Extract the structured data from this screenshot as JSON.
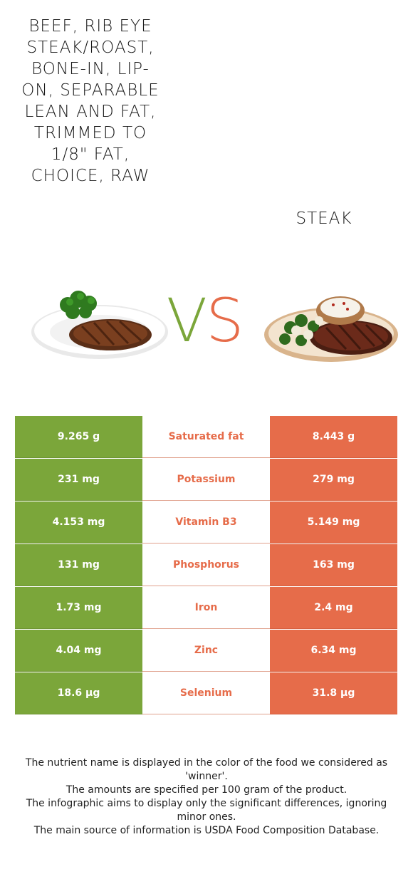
{
  "food_left": {
    "name": "Beef, rib eye steak/roast, bone-in, lip-on, separable lean and fat, trimmed to 1/8\" fat, choice, raw",
    "color": "#7ba63a"
  },
  "food_right": {
    "name": "Steak",
    "color": "#e66c4a"
  },
  "vs": {
    "v": "V",
    "s": "S"
  },
  "nutrients": [
    {
      "name": "Saturated fat",
      "left": "9.265 g",
      "right": "8.443 g"
    },
    {
      "name": "Potassium",
      "left": "231 mg",
      "right": "279 mg"
    },
    {
      "name": "Vitamin B3",
      "left": "4.153 mg",
      "right": "5.149 mg"
    },
    {
      "name": "Phosphorus",
      "left": "131 mg",
      "right": "163 mg"
    },
    {
      "name": "Iron",
      "left": "1.73 mg",
      "right": "2.4 mg"
    },
    {
      "name": "Zinc",
      "left": "4.04 mg",
      "right": "6.34 mg"
    },
    {
      "name": "Selenium",
      "left": "18.6 µg",
      "right": "31.8 µg"
    }
  ],
  "winner_color": "#e66c4a",
  "footer": [
    "The nutrient name is displayed in the color of the food we considered as 'winner'.",
    "The amounts are specified per 100 gram of the product.",
    "The infographic aims to display only the significant differences, ignoring minor ones.",
    "The main source of information is USDA Food Composition Database."
  ]
}
